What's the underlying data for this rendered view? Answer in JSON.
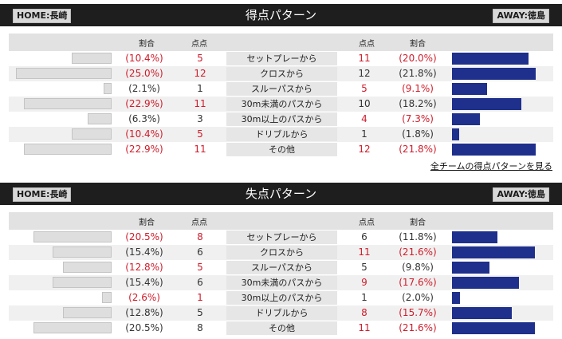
{
  "home_team": "HOME:長崎",
  "away_team": "AWAY:徳島",
  "columns": {
    "ratio": "割合",
    "points": "点点"
  },
  "sections": [
    {
      "title": "得点パターン",
      "link": "全チームの得点パターンを見る",
      "rows": [
        {
          "label": "セットプレーから",
          "home_pct": "(10.4%)",
          "home_n": "5",
          "away_n": "11",
          "away_pct": "(20.0%)",
          "home_red": true,
          "away_red": true,
          "home_fill": 0.104,
          "away_fill": 0.2
        },
        {
          "label": "クロスから",
          "home_pct": "(25.0%)",
          "home_n": "12",
          "away_n": "12",
          "away_pct": "(21.8%)",
          "home_red": true,
          "away_red": false,
          "home_fill": 0.25,
          "away_fill": 0.218
        },
        {
          "label": "スルーパスから",
          "home_pct": "(2.1%)",
          "home_n": "1",
          "away_n": "5",
          "away_pct": "(9.1%)",
          "home_red": false,
          "away_red": true,
          "home_fill": 0.021,
          "away_fill": 0.091
        },
        {
          "label": "30m未満のパスから",
          "home_pct": "(22.9%)",
          "home_n": "11",
          "away_n": "10",
          "away_pct": "(18.2%)",
          "home_red": true,
          "away_red": false,
          "home_fill": 0.229,
          "away_fill": 0.182
        },
        {
          "label": "30m以上のパスから",
          "home_pct": "(6.3%)",
          "home_n": "3",
          "away_n": "4",
          "away_pct": "(7.3%)",
          "home_red": false,
          "away_red": true,
          "home_fill": 0.063,
          "away_fill": 0.073
        },
        {
          "label": "ドリブルから",
          "home_pct": "(10.4%)",
          "home_n": "5",
          "away_n": "1",
          "away_pct": "(1.8%)",
          "home_red": true,
          "away_red": false,
          "home_fill": 0.104,
          "away_fill": 0.018
        },
        {
          "label": "その他",
          "home_pct": "(22.9%)",
          "home_n": "11",
          "away_n": "12",
          "away_pct": "(21.8%)",
          "home_red": true,
          "away_red": true,
          "home_fill": 0.229,
          "away_fill": 0.218
        }
      ]
    },
    {
      "title": "失点パターン",
      "link": "",
      "rows": [
        {
          "label": "セットプレーから",
          "home_pct": "(20.5%)",
          "home_n": "8",
          "away_n": "6",
          "away_pct": "(11.8%)",
          "home_red": true,
          "away_red": false,
          "home_fill": 0.205,
          "away_fill": 0.118
        },
        {
          "label": "クロスから",
          "home_pct": "(15.4%)",
          "home_n": "6",
          "away_n": "11",
          "away_pct": "(21.6%)",
          "home_red": false,
          "away_red": true,
          "home_fill": 0.154,
          "away_fill": 0.216
        },
        {
          "label": "スルーパスから",
          "home_pct": "(12.8%)",
          "home_n": "5",
          "away_n": "5",
          "away_pct": "(9.8%)",
          "home_red": true,
          "away_red": false,
          "home_fill": 0.128,
          "away_fill": 0.098
        },
        {
          "label": "30m未満のパスから",
          "home_pct": "(15.4%)",
          "home_n": "6",
          "away_n": "9",
          "away_pct": "(17.6%)",
          "home_red": false,
          "away_red": true,
          "home_fill": 0.154,
          "away_fill": 0.176
        },
        {
          "label": "30m以上のパスから",
          "home_pct": "(2.6%)",
          "home_n": "1",
          "away_n": "1",
          "away_pct": "(2.0%)",
          "home_red": true,
          "away_red": false,
          "home_fill": 0.026,
          "away_fill": 0.02
        },
        {
          "label": "ドリブルから",
          "home_pct": "(12.8%)",
          "home_n": "5",
          "away_n": "8",
          "away_pct": "(15.7%)",
          "home_red": false,
          "away_red": true,
          "home_fill": 0.128,
          "away_fill": 0.157
        },
        {
          "label": "その他",
          "home_pct": "(20.5%)",
          "home_n": "8",
          "away_n": "11",
          "away_pct": "(21.6%)",
          "home_red": false,
          "away_red": true,
          "home_fill": 0.205,
          "away_fill": 0.216
        }
      ]
    }
  ],
  "colors": {
    "home_bar": "#dedede",
    "away_bar": "#1f2f8c",
    "highlight": "#d01c2a",
    "header": "#1e1e1e"
  }
}
